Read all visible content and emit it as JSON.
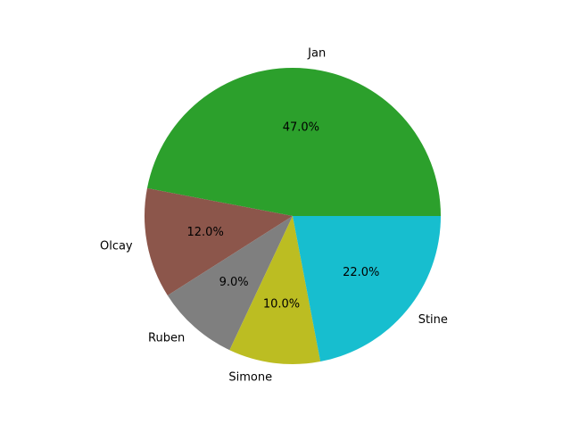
{
  "chart_data": {
    "type": "pie",
    "title": "",
    "start_angle_deg": 0,
    "direction": "counterclockwise",
    "slices": [
      {
        "label": "Jan",
        "value": 47.0,
        "pct_label": "47.0%",
        "color": "#2ca02c"
      },
      {
        "label": "Olcay",
        "value": 12.0,
        "pct_label": "12.0%",
        "color": "#8c564b"
      },
      {
        "label": "Ruben",
        "value": 9.0,
        "pct_label": "9.0%",
        "color": "#7f7f7f"
      },
      {
        "label": "Simone",
        "value": 10.0,
        "pct_label": "10.0%",
        "color": "#bcbd22"
      },
      {
        "label": "Stine",
        "value": 22.0,
        "pct_label": "22.0%",
        "color": "#17becf"
      }
    ]
  }
}
